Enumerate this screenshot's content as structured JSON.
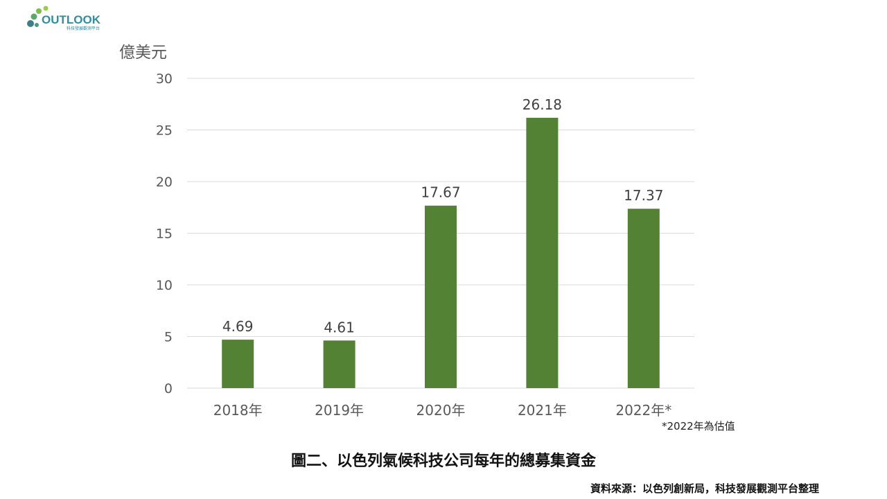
{
  "colors": {
    "bar": "#548235",
    "grid": "#d9d9d9",
    "axis_text": "#595959",
    "label_text": "#404040"
  },
  "logo": {
    "text": "OUTLOOK",
    "tagline": "科技發展觀測平台"
  },
  "chart_data": {
    "type": "bar",
    "ylabel": "億美元",
    "categories": [
      "2018年",
      "2019年",
      "2020年",
      "2021年",
      "2022年*"
    ],
    "values": [
      4.69,
      4.61,
      17.67,
      26.18,
      17.37
    ],
    "value_labels": [
      "4.69",
      "4.61",
      "17.67",
      "26.18",
      "17.37"
    ],
    "ylim": [
      0,
      30
    ],
    "yticks": [
      0,
      5,
      10,
      15,
      20,
      25,
      30
    ],
    "grid": true,
    "legend": "none"
  },
  "note": "*2022年為估值",
  "caption": "圖二、以色列氣候科技公司每年的總募集資金",
  "source": "資料來源：以色列創新局，科技發展觀測平台整理"
}
